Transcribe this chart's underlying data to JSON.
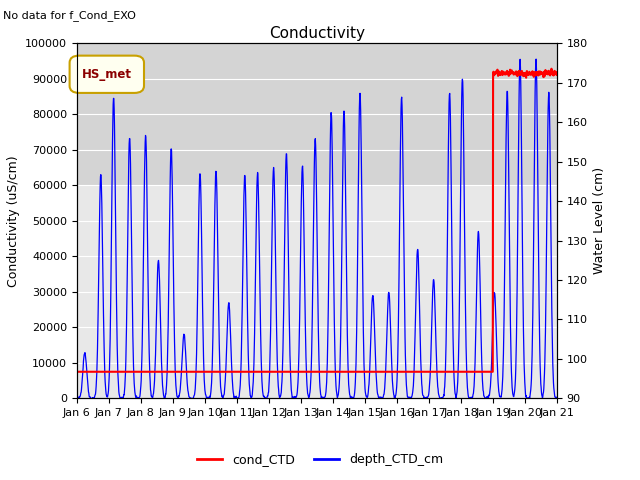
{
  "title": "Conductivity",
  "topleft_text": "No data for f_Cond_EXO",
  "ylabel_left": "Conductivity (uS/cm)",
  "ylabel_right": "Water Level (cm)",
  "ylim_left": [
    0,
    100000
  ],
  "ylim_right": [
    90,
    180
  ],
  "yticks_left": [
    0,
    10000,
    20000,
    30000,
    40000,
    50000,
    60000,
    70000,
    80000,
    90000,
    100000
  ],
  "yticks_right": [
    90,
    100,
    110,
    120,
    130,
    140,
    150,
    160,
    170,
    180
  ],
  "xtick_labels": [
    "Jan 6",
    "Jan 7",
    "Jan 8",
    "Jan 9",
    "Jan 10",
    "Jan 11",
    "Jan 12",
    "Jan 13",
    "Jan 14",
    "Jan 15",
    "Jan 16",
    "Jan 17",
    "Jan 18",
    "Jan 19",
    "Jan 20",
    "Jan 21"
  ],
  "legend_label1": "cond_CTD",
  "legend_label2": "depth_CTD_cm",
  "legend_box_label": "HS_met",
  "line_color_cond": "red",
  "line_color_depth": "blue",
  "plot_bg_color": "#e8e8e8",
  "band1_color": "#d0d0d0",
  "band2_color": "#c8c8c8",
  "title_fontsize": 11,
  "label_fontsize": 9,
  "tick_fontsize": 8
}
